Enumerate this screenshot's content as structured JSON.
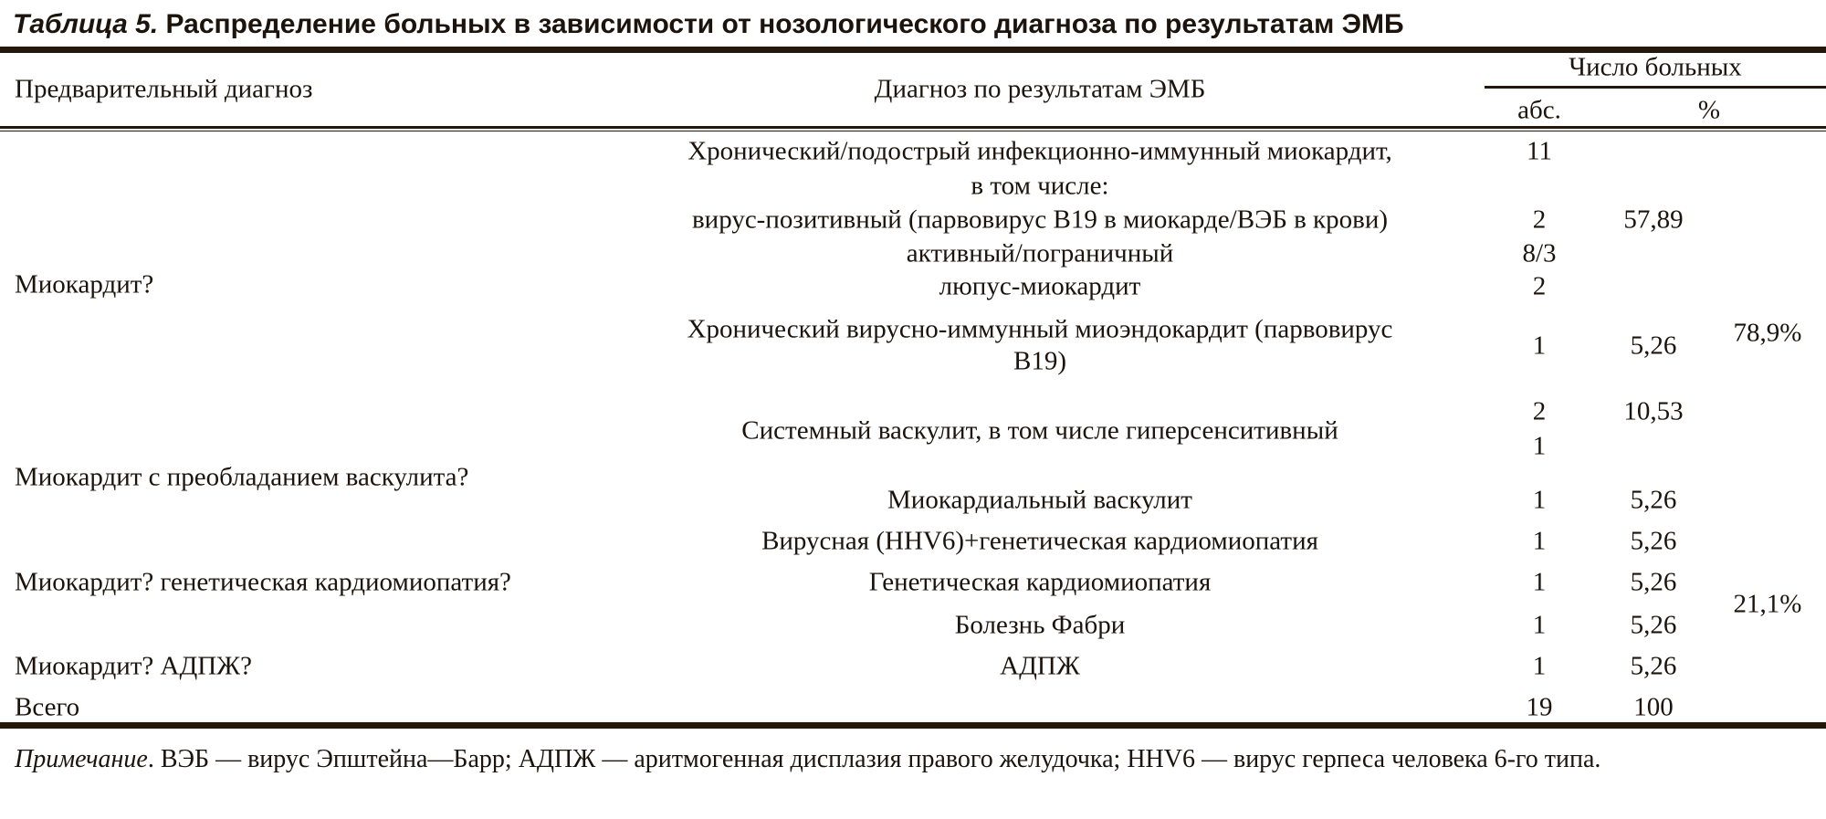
{
  "title": {
    "label": "Таблица 5.",
    "text": "Распределение больных в зависимости от нозологического диагноза по результатам ЭМБ"
  },
  "header": {
    "preliminary": "Предварительный диагноз",
    "emb": "Диагноз по результатам ЭМБ",
    "count": "Число больных",
    "abs": "абс.",
    "pct": "%"
  },
  "groups": [
    {
      "label": "Миокардит?",
      "total": "78,9%"
    },
    {
      "label": "Миокардит с преобладанием васкулита?"
    },
    {
      "label": "Миокардит? генетическая кардиомиопатия?",
      "total": "21,1%"
    },
    {
      "label": "Миокардит? АДПЖ?"
    }
  ],
  "rows": [
    {
      "diag": "Хронический/подострый инфекционно-иммунный миокардит,",
      "abs": "11"
    },
    {
      "diag": "в том числе:"
    },
    {
      "diag": "вирус-позитивный (парвовирус В19 в миокарде/ВЭБ в крови)",
      "abs": "2",
      "pct": "57,89"
    },
    {
      "diag": "активный/пограничный",
      "abs": "8/3"
    },
    {
      "diag": "люпус-миокардит",
      "abs": "2"
    },
    {
      "diag": "Хронический вирусно-иммунный миоэндокардит (парвовирус",
      "diag2": "В19)",
      "abs": "1",
      "pct": "5,26"
    },
    {
      "diag": "Системный васкулит, в том числе гиперсенситивный",
      "abs": "2",
      "abs2": "1",
      "pct": "10,53"
    },
    {
      "diag": "Миокардиальный васкулит",
      "abs": "1",
      "pct": "5,26"
    },
    {
      "diag": "Вирусная (HHV6)+генетическая кардиомиопатия",
      "abs": "1",
      "pct": "5,26"
    },
    {
      "diag": "Генетическая кардиомиопатия",
      "abs": "1",
      "pct": "5,26"
    },
    {
      "diag": "Болезнь Фабри",
      "abs": "1",
      "pct": "5,26"
    },
    {
      "diag": "АДПЖ",
      "abs": "1",
      "pct": "5,26"
    }
  ],
  "total": {
    "label": "Всего",
    "abs": "19",
    "pct": "100"
  },
  "note": {
    "label": "Примечание",
    "text": ". ВЭБ — вирус Эпштейна—Барр; АДПЖ — аритмогенная дисплазия правого желудочка; HHV6 — вирус герпеса человека 6-го типа."
  }
}
